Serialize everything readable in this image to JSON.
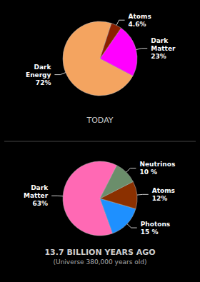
{
  "chart_data": [
    {
      "type": "pie",
      "title": "TODAY",
      "categories": [
        "Dark\nEnergy",
        "Dark\nMatter",
        "Atoms"
      ],
      "values": [
        72,
        23,
        4.6
      ],
      "value_labels": [
        "72%",
        "23%",
        "4.6%"
      ],
      "data_labels": true,
      "colors": [
        "#F4A460",
        "#FF00FF",
        "#8B2000"
      ]
    },
    {
      "type": "pie",
      "title": "13.7 BILLION YEARS AGO",
      "subtitle": "(Universe 380,000 years old)",
      "categories": [
        "Dark\nMatter",
        "Photons",
        "Atoms",
        "Neutrinos"
      ],
      "values": [
        63,
        15,
        12,
        10
      ],
      "value_labels": [
        "63%",
        "15 %",
        "12%",
        "10 %"
      ],
      "data_labels": true,
      "colors": [
        "#FF69B4",
        "#1E90FF",
        "#8B3000",
        "#6B8E6B"
      ]
    }
  ]
}
